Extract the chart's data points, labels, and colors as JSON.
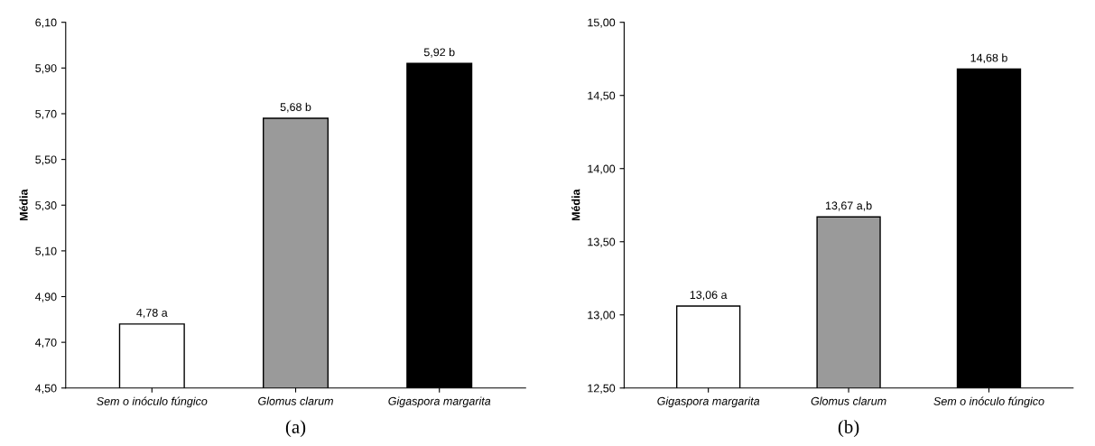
{
  "chart_data": [
    {
      "type": "bar",
      "ylabel": "Média",
      "categories": [
        "Sem o inóculo fúngico",
        "Glomus clarum",
        "Gigaspora margarita"
      ],
      "values": [
        4.78,
        5.68,
        5.92
      ],
      "colors": [
        "#ffffff",
        "#9a9a9a",
        "#000000"
      ],
      "value_labels": [
        "4,78 a",
        "5,68 b",
        "5,92 b"
      ],
      "ylim": [
        4.5,
        6.1
      ],
      "yticks": [
        {
          "value": 4.5,
          "label": "4,50"
        },
        {
          "value": 4.7,
          "label": "4,70"
        },
        {
          "value": 4.9,
          "label": "4,90"
        },
        {
          "value": 5.1,
          "label": "5,10"
        },
        {
          "value": 5.3,
          "label": "5,30"
        },
        {
          "value": 5.5,
          "label": "5,50"
        },
        {
          "value": 5.7,
          "label": "5,70"
        },
        {
          "value": 5.9,
          "label": "5,90"
        },
        {
          "value": 6.1,
          "label": "6,10"
        }
      ],
      "annotations": [
        "(a)"
      ]
    },
    {
      "type": "bar",
      "ylabel": "Média",
      "categories": [
        "Gigaspora margarita",
        "Glomus clarum",
        "Sem o inóculo fúngico"
      ],
      "values": [
        13.06,
        13.67,
        14.68
      ],
      "colors": [
        "#ffffff",
        "#9a9a9a",
        "#000000"
      ],
      "value_labels": [
        "13,06 a",
        "13,67 a,b",
        "14,68 b"
      ],
      "ylim": [
        12.5,
        15.0
      ],
      "yticks": [
        {
          "value": 12.5,
          "label": "12,50"
        },
        {
          "value": 13.0,
          "label": "13,00"
        },
        {
          "value": 13.5,
          "label": "13,50"
        },
        {
          "value": 14.0,
          "label": "14,00"
        },
        {
          "value": 14.5,
          "label": "14,50"
        },
        {
          "value": 15.0,
          "label": "15,00"
        }
      ],
      "annotations": [
        "(b)"
      ]
    }
  ]
}
